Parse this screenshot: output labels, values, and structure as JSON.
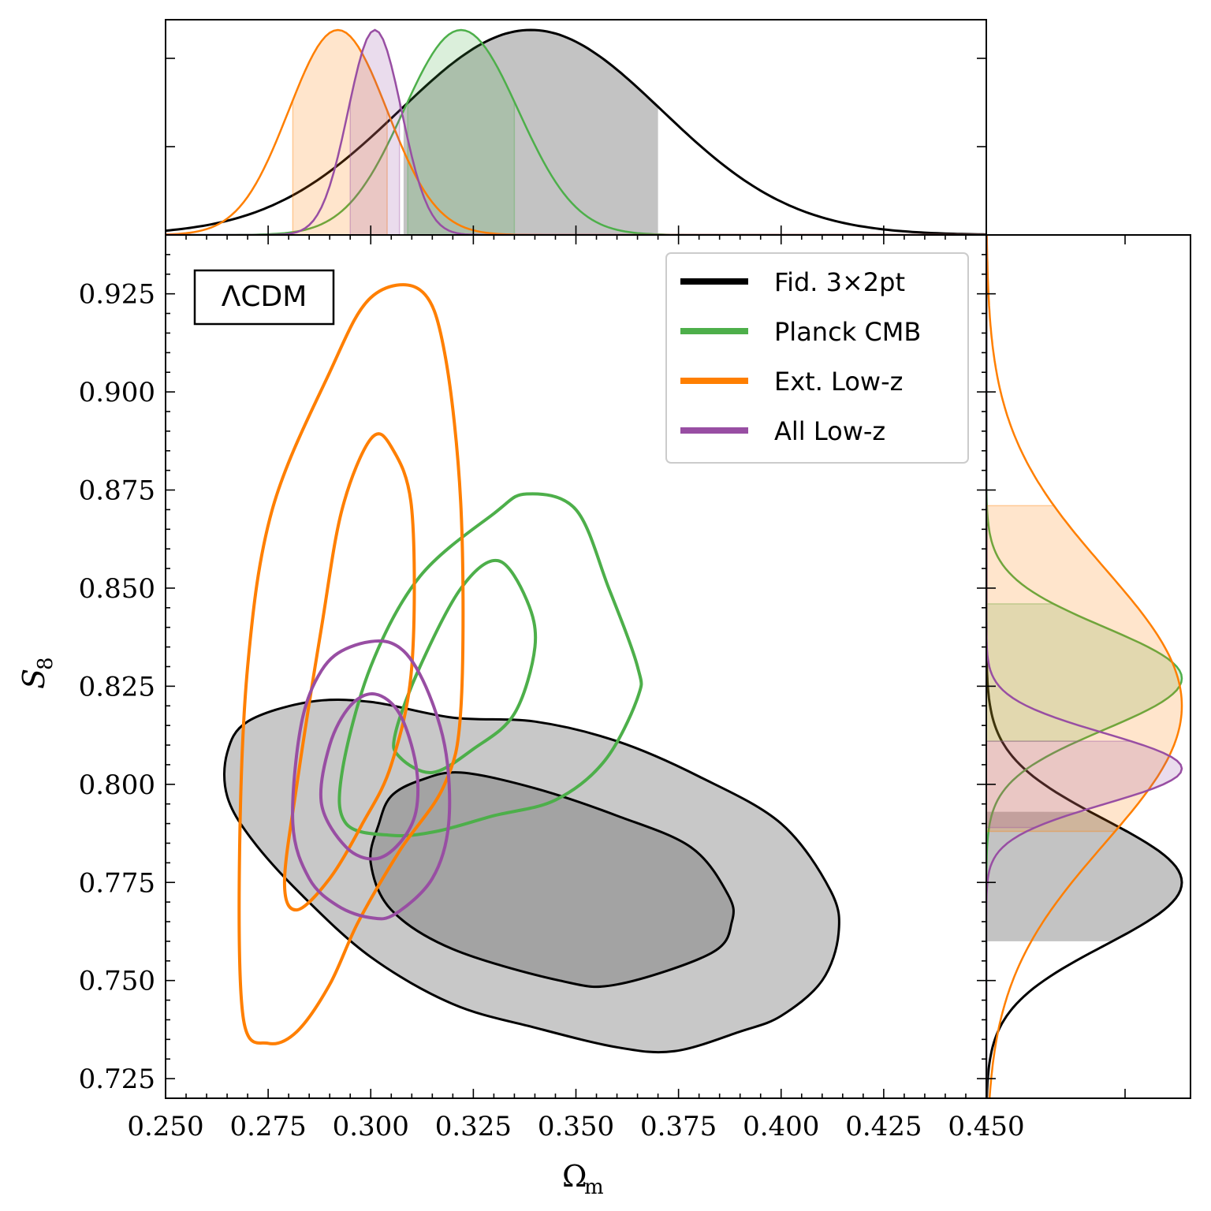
{
  "chart_data": {
    "type": "scatter",
    "xlabel": "Ω",
    "xlabel_sub": "m",
    "ylabel": "S",
    "ylabel_sub": "8",
    "xlim": [
      0.25,
      0.45
    ],
    "ylim": [
      0.72,
      0.94
    ],
    "xticks": [
      "0.250",
      "0.275",
      "0.300",
      "0.325",
      "0.350",
      "0.375",
      "0.400",
      "0.425",
      "0.450"
    ],
    "yticks": [
      "0.725",
      "0.750",
      "0.775",
      "0.800",
      "0.825",
      "0.850",
      "0.875",
      "0.900",
      "0.925"
    ],
    "badge": "ΛCDM",
    "legend_position": "top-right",
    "colors": {
      "fid": "#000000",
      "planck": "#4daf4a",
      "ext": "#ff7f00",
      "all": "#984ea3"
    },
    "series": [
      {
        "key": "fid",
        "name": "Fid. 3×2pt",
        "marginal_x": {
          "mean": 0.339,
          "sigma": 0.032,
          "ci68": [
            0.308,
            0.37
          ]
        },
        "marginal_y": {
          "mean": 0.775,
          "sigma": 0.016,
          "ci68": [
            0.76,
            0.793
          ]
        },
        "contour68": [
          [
            0.302,
            0.79
          ],
          [
            0.305,
            0.797
          ],
          [
            0.312,
            0.801
          ],
          [
            0.322,
            0.803
          ],
          [
            0.34,
            0.799
          ],
          [
            0.36,
            0.792
          ],
          [
            0.378,
            0.784
          ],
          [
            0.387,
            0.772
          ],
          [
            0.388,
            0.765
          ],
          [
            0.383,
            0.757
          ],
          [
            0.36,
            0.749
          ],
          [
            0.346,
            0.75
          ],
          [
            0.32,
            0.758
          ],
          [
            0.305,
            0.768
          ],
          [
            0.3,
            0.78
          ]
        ],
        "contour95": [
          [
            0.265,
            0.808
          ],
          [
            0.27,
            0.816
          ],
          [
            0.285,
            0.821
          ],
          [
            0.3,
            0.821
          ],
          [
            0.32,
            0.817
          ],
          [
            0.34,
            0.816
          ],
          [
            0.36,
            0.811
          ],
          [
            0.38,
            0.802
          ],
          [
            0.4,
            0.79
          ],
          [
            0.412,
            0.773
          ],
          [
            0.414,
            0.762
          ],
          [
            0.41,
            0.75
          ],
          [
            0.4,
            0.741
          ],
          [
            0.39,
            0.737
          ],
          [
            0.374,
            0.732
          ],
          [
            0.36,
            0.733
          ],
          [
            0.34,
            0.738
          ],
          [
            0.32,
            0.744
          ],
          [
            0.3,
            0.756
          ],
          [
            0.283,
            0.772
          ],
          [
            0.271,
            0.786
          ],
          [
            0.265,
            0.797
          ]
        ]
      },
      {
        "key": "planck",
        "name": "Planck CMB",
        "marginal_x": {
          "mean": 0.322,
          "sigma": 0.014,
          "ci68": [
            0.309,
            0.335
          ]
        },
        "marginal_y": {
          "mean": 0.827,
          "sigma": 0.013,
          "ci68": [
            0.811,
            0.846
          ]
        },
        "contour68": [
          [
            0.306,
            0.813
          ],
          [
            0.312,
            0.83
          ],
          [
            0.322,
            0.85
          ],
          [
            0.331,
            0.857
          ],
          [
            0.338,
            0.847
          ],
          [
            0.34,
            0.835
          ],
          [
            0.335,
            0.818
          ],
          [
            0.325,
            0.809
          ],
          [
            0.315,
            0.803
          ],
          [
            0.307,
            0.807
          ]
        ],
        "contour95": [
          [
            0.293,
            0.803
          ],
          [
            0.3,
            0.83
          ],
          [
            0.312,
            0.853
          ],
          [
            0.33,
            0.869
          ],
          [
            0.338,
            0.874
          ],
          [
            0.35,
            0.87
          ],
          [
            0.358,
            0.85
          ],
          [
            0.365,
            0.83
          ],
          [
            0.365,
            0.822
          ],
          [
            0.357,
            0.806
          ],
          [
            0.345,
            0.796
          ],
          [
            0.33,
            0.792
          ],
          [
            0.316,
            0.788
          ],
          [
            0.305,
            0.787
          ],
          [
            0.294,
            0.79
          ]
        ]
      },
      {
        "key": "ext",
        "name": "Ext. Low-z",
        "marginal_x": {
          "mean": 0.292,
          "sigma": 0.012,
          "ci68": [
            0.281,
            0.304
          ]
        },
        "marginal_y": {
          "mean": 0.82,
          "sigma": 0.035,
          "ci68": [
            0.788,
            0.871
          ]
        },
        "contour68": [
          [
            0.279,
            0.775
          ],
          [
            0.282,
            0.8
          ],
          [
            0.288,
            0.84
          ],
          [
            0.293,
            0.87
          ],
          [
            0.3,
            0.888
          ],
          [
            0.305,
            0.886
          ],
          [
            0.31,
            0.87
          ],
          [
            0.31,
            0.83
          ],
          [
            0.305,
            0.805
          ],
          [
            0.298,
            0.79
          ],
          [
            0.29,
            0.776
          ],
          [
            0.282,
            0.768
          ]
        ],
        "contour95": [
          [
            0.269,
            0.74
          ],
          [
            0.268,
            0.78
          ],
          [
            0.27,
            0.83
          ],
          [
            0.276,
            0.87
          ],
          [
            0.29,
            0.905
          ],
          [
            0.3,
            0.924
          ],
          [
            0.312,
            0.926
          ],
          [
            0.318,
            0.91
          ],
          [
            0.322,
            0.87
          ],
          [
            0.322,
            0.82
          ],
          [
            0.318,
            0.8
          ],
          [
            0.307,
            0.783
          ],
          [
            0.297,
            0.765
          ],
          [
            0.29,
            0.749
          ],
          [
            0.282,
            0.737
          ],
          [
            0.275,
            0.734
          ]
        ]
      },
      {
        "key": "all",
        "name": "All Low-z",
        "marginal_x": {
          "mean": 0.301,
          "sigma": 0.0065,
          "ci68": [
            0.295,
            0.307
          ]
        },
        "marginal_y": {
          "mean": 0.804,
          "sigma": 0.009,
          "ci68": [
            0.789,
            0.811
          ]
        },
        "contour68": [
          [
            0.288,
            0.795
          ],
          [
            0.29,
            0.81
          ],
          [
            0.295,
            0.82
          ],
          [
            0.301,
            0.823
          ],
          [
            0.307,
            0.818
          ],
          [
            0.311,
            0.805
          ],
          [
            0.311,
            0.793
          ],
          [
            0.307,
            0.785
          ],
          [
            0.301,
            0.781
          ],
          [
            0.294,
            0.784
          ]
        ],
        "contour95": [
          [
            0.281,
            0.79
          ],
          [
            0.283,
            0.815
          ],
          [
            0.288,
            0.829
          ],
          [
            0.295,
            0.835
          ],
          [
            0.305,
            0.836
          ],
          [
            0.312,
            0.828
          ],
          [
            0.318,
            0.81
          ],
          [
            0.319,
            0.79
          ],
          [
            0.315,
            0.776
          ],
          [
            0.306,
            0.767
          ],
          [
            0.3,
            0.766
          ],
          [
            0.292,
            0.769
          ],
          [
            0.285,
            0.776
          ]
        ]
      }
    ]
  }
}
